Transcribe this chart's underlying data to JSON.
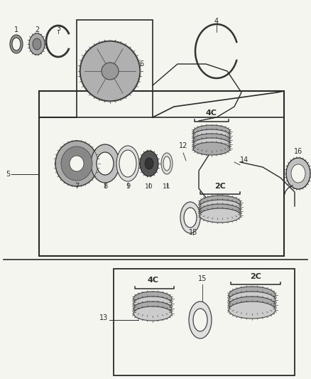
{
  "bg_color": "#f5f5f0",
  "line_color": "#2a2a2a",
  "gray_light": "#c8c8c8",
  "gray_med": "#999999",
  "gray_dark": "#555555",
  "label_4C": "4C",
  "label_2C": "2C",
  "figsize": [
    4.38,
    5.33
  ],
  "dpi": 100
}
